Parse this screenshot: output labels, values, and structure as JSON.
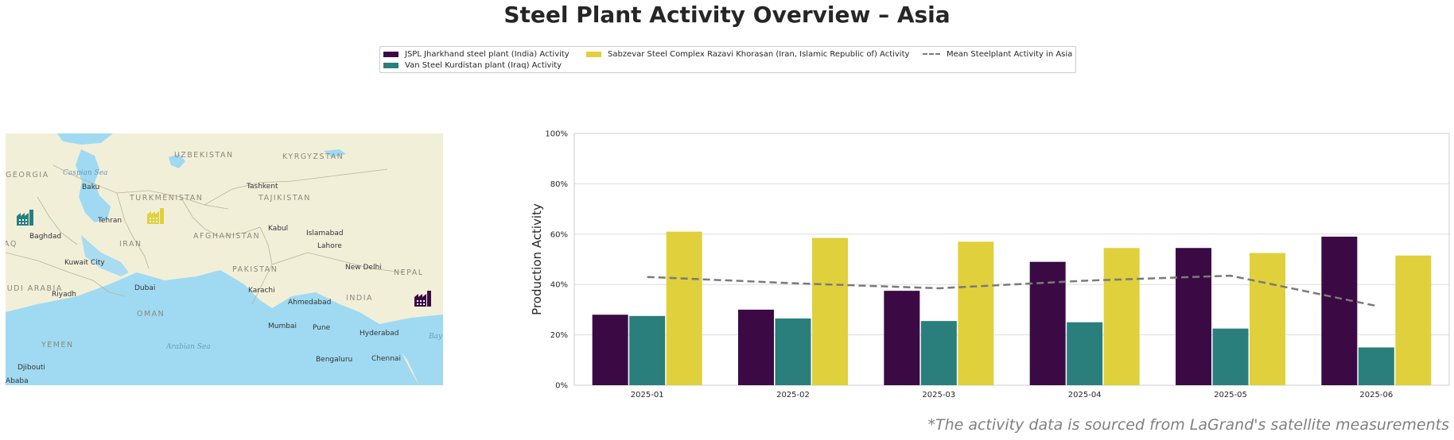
{
  "title": "Steel Plant Activity Overview – Asia",
  "footnote": "*The activity data is sourced from LaGrand's satellite measurements",
  "legend": [
    {
      "label": "JSPL Jharkhand steel plant (India) Activity",
      "color": "#3b0a45",
      "kind": "bar"
    },
    {
      "label": "Van Steel Kurdistan plant (Iraq) Activity",
      "color": "#2a7f7c",
      "kind": "bar"
    },
    {
      "label": "Sabzevar Steel Complex Razavi Khorasan (Iran, Islamic Republic of) Activity",
      "color": "#e0d03c",
      "kind": "bar"
    },
    {
      "label": "Mean Steelplant Activity in Asia",
      "color": "#7a7a7a",
      "kind": "dash"
    }
  ],
  "map": {
    "labels": {
      "countries": [
        "GEORGIA",
        "UZBEKISTAN",
        "KYRGYZSTAN",
        "TURKMENISTAN",
        "TAJIKISTAN",
        "IRAN",
        "AFGHANISTAN",
        "PAKISTAN",
        "IRAQ",
        "SAUDI ARABIA",
        "OMAN",
        "YEMEN",
        "INDIA",
        "NEPAL"
      ],
      "cities": [
        "Baku",
        "Tashkent",
        "Tehran",
        "Kabul",
        "Islamabad",
        "Baghdad",
        "Lahore",
        "Kuwait City",
        "New Delhi",
        "Dubai",
        "Riyadh",
        "Karachi",
        "Ahmedabad",
        "Mumbai",
        "Pune",
        "Hyderabad",
        "Bengaluru",
        "Chennai",
        "Djibouti",
        "Ababa"
      ],
      "seas": [
        "Caspian Sea",
        "Arabian Sea",
        "Bay"
      ]
    },
    "markers": [
      {
        "name": "Van Steel Kurdistan plant",
        "color": "#2a7f7c",
        "icon": "factory-icon"
      },
      {
        "name": "Sabzevar Steel Complex",
        "color": "#e0d03c",
        "icon": "factory-icon"
      },
      {
        "name": "JSPL Jharkhand steel plant",
        "color": "#3b0a45",
        "icon": "factory-icon"
      }
    ]
  },
  "chart_data": {
    "type": "bar",
    "categories": [
      "2025-01",
      "2025-02",
      "2025-03",
      "2025-04",
      "2025-05",
      "2025-06"
    ],
    "series": [
      {
        "name": "JSPL Jharkhand steel plant (India) Activity",
        "color": "#3b0a45",
        "values": [
          28,
          30,
          37.5,
          49,
          54.5,
          59
        ]
      },
      {
        "name": "Van Steel Kurdistan plant (Iraq) Activity",
        "color": "#2a7f7c",
        "values": [
          27.5,
          26.5,
          25.5,
          25,
          22.5,
          15
        ]
      },
      {
        "name": "Sabzevar Steel Complex Razavi Khorasan (Iran, Islamic Republic of) Activity",
        "color": "#e0d03c",
        "values": [
          61,
          58.5,
          57,
          54.5,
          52.5,
          51.5
        ]
      }
    ],
    "mean_line": {
      "name": "Mean Steelplant Activity in Asia",
      "color": "#7a7a7a",
      "values": [
        43,
        40.5,
        38.5,
        41.5,
        43.5,
        31.5
      ]
    },
    "xlabel": "",
    "ylabel": "Production Activity",
    "ylim": [
      0,
      100
    ],
    "yticks": [
      "0%",
      "20%",
      "40%",
      "60%",
      "80%",
      "100%"
    ],
    "grid": true,
    "legend_position": "top-center"
  }
}
